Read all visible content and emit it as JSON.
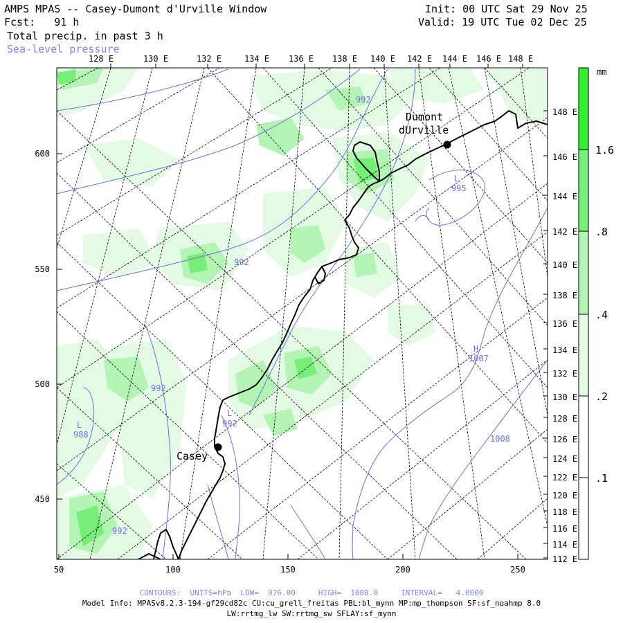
{
  "header": {
    "title": "AMPS MPAS -- Casey-Dumont d'Urville Window",
    "fcst": "Fcst:   91 h",
    "field1": "Total precip. in past 3 h",
    "field2": "Sea-level pressure",
    "init": "Init: 00 UTC Sat 29 Nov 25",
    "valid": "Valid: 19 UTC Tue 02 Dec 25"
  },
  "top_axis_labels": [
    "128 E",
    "130 E",
    "132 E",
    "134 E",
    "136 E",
    "138 E",
    "140 E",
    "142 E",
    "144 E",
    "146 E",
    "148 E"
  ],
  "right_axis_labels": [
    "148 E",
    "146 E",
    "144 E",
    "142 E",
    "140 E",
    "138 E",
    "136 E",
    "134 E",
    "132 E",
    "130 E",
    "128 E",
    "126 E",
    "124 E",
    "122 E",
    "120 E",
    "118 E",
    "116 E",
    "114 E",
    "112 E"
  ],
  "x_axis_labels": [
    "50",
    "100",
    "150",
    "200",
    "250"
  ],
  "y_axis_labels": [
    "600",
    "550",
    "500",
    "450"
  ],
  "stations": [
    {
      "name_line1": "Dumont",
      "name_line2": "dUrville"
    },
    {
      "name_line1": "Casey",
      "name_line2": ""
    }
  ],
  "colorbar": {
    "unit": "mm",
    "labels": [
      "1.6",
      ".8",
      ".4",
      ".2",
      ".1"
    ],
    "colors": [
      "#33ee33",
      "#77ee77",
      "#b3f3b3",
      "#e4fae4",
      "#ffffff"
    ]
  },
  "contour_labels": [
    "992",
    "992",
    "992",
    "992",
    "995",
    "1007",
    "1008",
    "988",
    "L",
    "L",
    "L",
    "H"
  ],
  "footer": {
    "contours": "CONTOURS:  UNITS=hPa  LOW=  976.00     HIGH=  1008.0     INTERVAL=   4.0000",
    "model_info": "Model Info: MPASv8.2.3-194-gf29cd82c CU:cu_grell_freitas PBL:bl_mynn MP:mp_thompson SF:sf_noahmp 8.0",
    "model_info2": "LW:rrtmg_lw SW:rrtmg_sw SFLAY:sf_mynn"
  }
}
